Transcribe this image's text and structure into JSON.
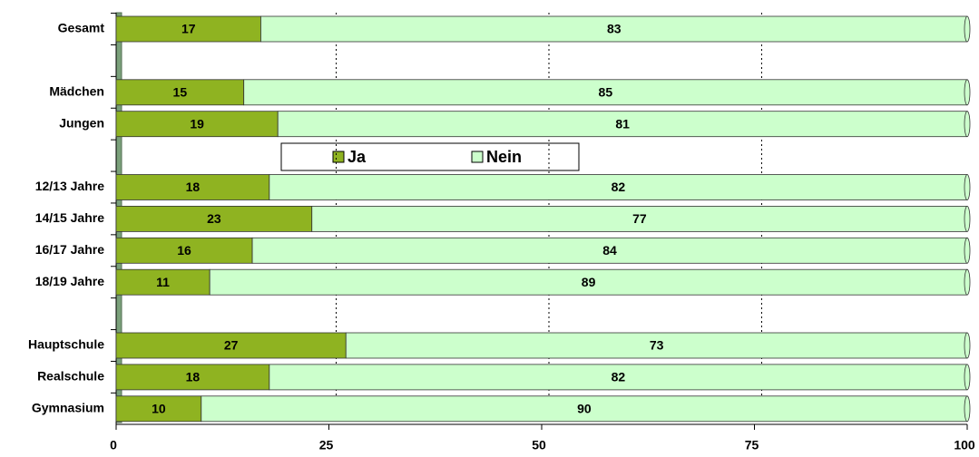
{
  "chart_data": {
    "type": "stacked_bar_horizontal",
    "categories": [
      "Gesamt",
      null,
      "Mädchen",
      "Jungen",
      null,
      "12/13 Jahre",
      "14/15 Jahre",
      "16/17 Jahre",
      "18/19 Jahre",
      null,
      "Hauptschule",
      "Realschule",
      "Gymnasium"
    ],
    "series": [
      {
        "name": "Ja",
        "color": "#8fb321",
        "values": [
          17,
          null,
          15,
          19,
          null,
          18,
          23,
          16,
          11,
          null,
          27,
          18,
          10
        ]
      },
      {
        "name": "Nein",
        "color": "#ccffcc",
        "values": [
          83,
          null,
          85,
          81,
          null,
          82,
          77,
          84,
          89,
          null,
          73,
          82,
          90
        ]
      }
    ],
    "xlim": [
      0,
      100
    ],
    "xticks": [
      0,
      25,
      50,
      75,
      100
    ],
    "grid": true
  }
}
